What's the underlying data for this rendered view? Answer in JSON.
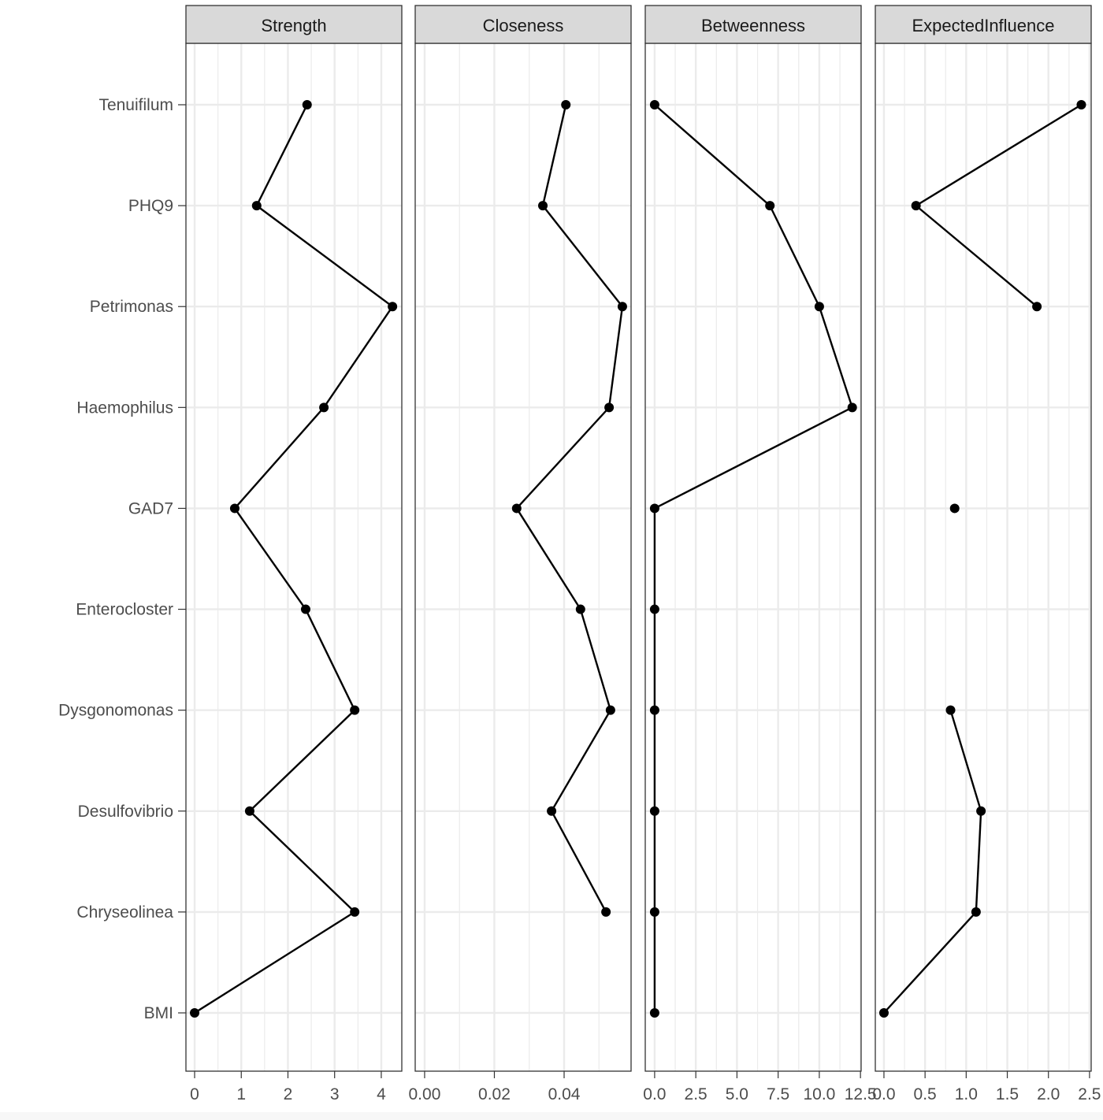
{
  "chart_data": {
    "type": "line",
    "title": "",
    "ylabel": "",
    "categories": [
      "Tenuifilum",
      "PHQ9",
      "Petrimonas",
      "Haemophilus",
      "GAD7",
      "Enterocloster",
      "Dysgonomonas",
      "Desulfovibrio",
      "Chryseolinea",
      "BMI"
    ],
    "panels": [
      {
        "name": "Strength",
        "xlim": [
          -0.186,
          4.44
        ],
        "ticks": [
          0,
          1,
          2,
          3,
          4
        ],
        "tick_labels": [
          "0",
          "1",
          "2",
          "3",
          "4"
        ],
        "values": [
          2.41,
          1.33,
          4.24,
          2.77,
          0.86,
          2.38,
          3.43,
          1.18,
          3.43,
          0
        ]
      },
      {
        "name": "Closeness",
        "xlim": [
          -0.0027,
          0.0592
        ],
        "ticks": [
          0,
          0.02,
          0.04
        ],
        "tick_labels": [
          "0.00",
          "0.02",
          "0.04"
        ],
        "values": [
          0.0405,
          0.0339,
          0.0567,
          0.0529,
          0.0264,
          0.0447,
          0.0533,
          0.0364,
          0.052,
          null
        ]
      },
      {
        "name": "Betweenness",
        "xlim": [
          -0.57,
          12.54
        ],
        "ticks": [
          0,
          2.5,
          5,
          7.5,
          10,
          12.5
        ],
        "tick_labels": [
          "0.0",
          "2.5",
          "5.0",
          "7.5",
          "10.0",
          "12.5"
        ],
        "values": [
          0,
          7,
          10,
          12,
          0,
          0,
          0,
          0,
          0,
          0
        ]
      },
      {
        "name": "ExpectedInfluence",
        "xlim": [
          -0.105,
          2.52
        ],
        "ticks": [
          0,
          0.5,
          1,
          1.5,
          2,
          2.5
        ],
        "tick_labels": [
          "0.0",
          "0.5",
          "1.0",
          "1.5",
          "2.0",
          "2.5"
        ],
        "values": [
          2.4,
          0.39,
          1.86,
          null,
          0.86,
          null,
          0.81,
          1.18,
          1.12,
          0
        ]
      }
    ],
    "grid": true,
    "legend": "none"
  },
  "colors": {
    "strip": "#d9d9d9",
    "grid": "#ebebeb",
    "line": "#000000",
    "text": "#4d4d4d",
    "border": "#333333"
  }
}
